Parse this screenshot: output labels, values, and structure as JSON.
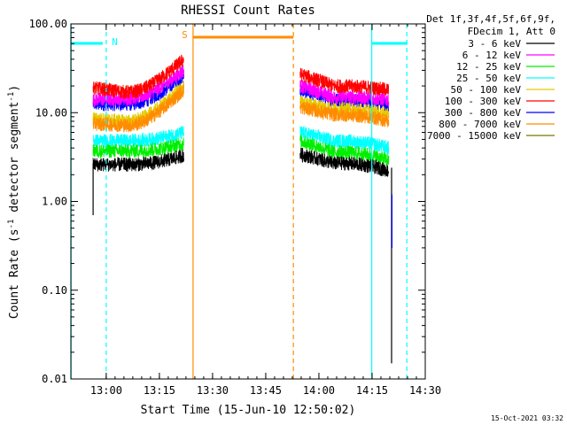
{
  "chart_data": {
    "type": "line",
    "title": "RHESSI Count Rates",
    "xlabel": "Start Time (15-Jun-10 12:50:02)",
    "ylabel_prefix": "Count Rate (s",
    "ylabel_exp": "-1",
    "ylabel_suffix": " detector segment",
    "ylabel_exp2": "-1",
    "ylabel_close": ")",
    "y_scale": "log",
    "ylim": [
      0.01,
      100
    ],
    "x_ticks": [
      "13:00",
      "13:15",
      "13:30",
      "13:45",
      "14:00",
      "14:15",
      "14:30"
    ],
    "x_tick_minutes": [
      0,
      15,
      30,
      45,
      60,
      75,
      90
    ],
    "y_ticks": [
      "0.01",
      "0.10",
      "1.00",
      "10.00",
      "100.00"
    ],
    "y_tick_values": [
      0.01,
      0.1,
      1,
      10,
      100
    ],
    "xlim_minutes": [
      -9.97,
      90
    ],
    "legend_header": [
      "Det 1f,3f,4f,5f,6f,9f,",
      "FDecim 1, Att 0"
    ],
    "legend_placement": "right",
    "series": [
      {
        "name": "3 - 6 keV",
        "color": "#000000",
        "seg1": [
          2.6,
          2.6,
          3.3
        ],
        "seg2": [
          3.4,
          2.7,
          2.2
        ]
      },
      {
        "name": "6 - 12 keV",
        "color": "#ff00ff",
        "seg1": [
          14,
          14.5,
          30
        ],
        "seg2": [
          20,
          15,
          14
        ]
      },
      {
        "name": "12 - 25 keV",
        "color": "#00ee00",
        "seg1": [
          3.7,
          3.7,
          4.5
        ],
        "seg2": [
          4.8,
          3.6,
          2.9
        ]
      },
      {
        "name": "25 - 50 keV",
        "color": "#00ffff",
        "seg1": [
          4.8,
          4.8,
          6
        ],
        "seg2": [
          6,
          4.8,
          4
        ]
      },
      {
        "name": "50 - 100 keV",
        "color": "#e6c800",
        "seg1": [
          8.5,
          8,
          20
        ],
        "seg2": [
          13,
          11,
          9.5
        ]
      },
      {
        "name": "100 - 300 keV",
        "color": "#ff0000",
        "seg1": [
          19,
          17,
          40
        ],
        "seg2": [
          27,
          20,
          18
        ]
      },
      {
        "name": "300 - 800 keV",
        "color": "#0000ff",
        "seg1": [
          12.5,
          12.5,
          26
        ],
        "seg2": [
          18,
          14,
          12
        ]
      },
      {
        "name": "800 - 7000 keV",
        "color": "#ff8c00",
        "seg1": [
          7.5,
          7.2,
          18
        ],
        "seg2": [
          11.5,
          9.5,
          8
        ]
      },
      {
        "name": "7000 - 15000 keV",
        "color": "#777700",
        "seg1": [
          null,
          null,
          null
        ],
        "seg2": [
          null,
          null,
          null
        ]
      }
    ],
    "segment_minutes": {
      "seg1": [
        -3.7,
        5.7,
        21.9
      ],
      "seg2": [
        54.7,
        64,
        79.7
      ]
    },
    "markers": [
      {
        "label": "N",
        "color": "#00ffff"
      },
      {
        "label": "S",
        "color": "#ff8c00"
      }
    ],
    "footer_date": "15-Oct-2021 03:32"
  }
}
